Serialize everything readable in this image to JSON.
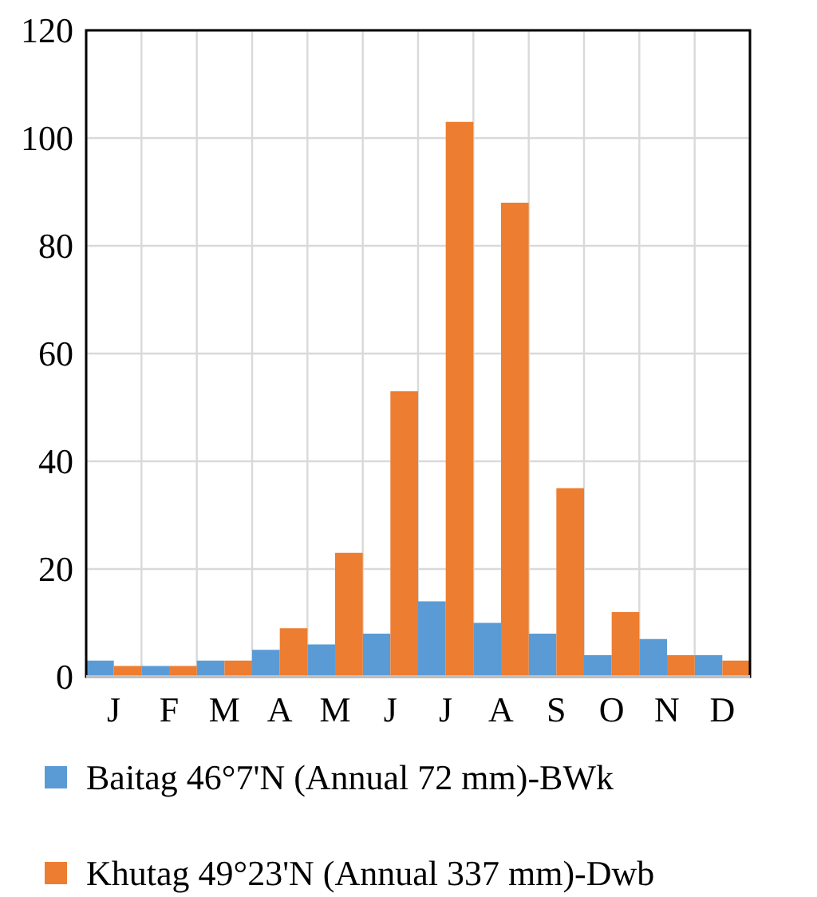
{
  "chart_data": {
    "type": "bar",
    "categories": [
      "J",
      "F",
      "M",
      "A",
      "M",
      "J",
      "J",
      "A",
      "S",
      "O",
      "N",
      "D"
    ],
    "series": [
      {
        "name": "Baitag 46°7'N (Annual 72 mm)-BWk",
        "color": "#5b9bd5",
        "values": [
          3,
          2,
          3,
          5,
          6,
          8,
          14,
          10,
          8,
          4,
          7,
          4
        ]
      },
      {
        "name": "Khutag 49°23'N (Annual 337 mm)-Dwb",
        "color": "#ed7d31",
        "values": [
          2,
          2,
          3,
          9,
          23,
          53,
          103,
          88,
          35,
          12,
          4,
          3
        ]
      }
    ],
    "ylim": [
      0,
      120
    ],
    "yticks": [
      0,
      20,
      40,
      60,
      80,
      100,
      120
    ],
    "grid": true,
    "legend": "bottom"
  }
}
